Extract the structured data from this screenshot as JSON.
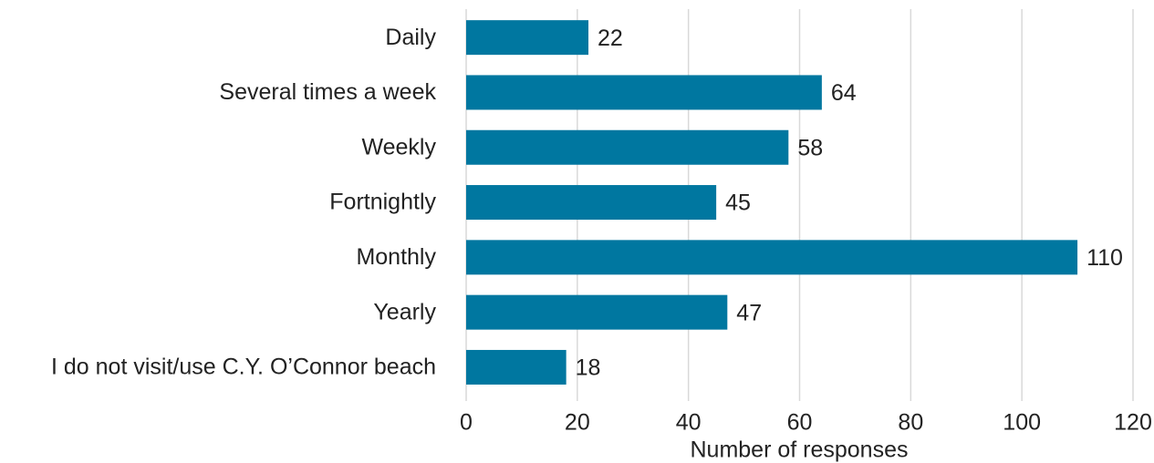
{
  "chart_data": {
    "type": "bar",
    "orientation": "horizontal",
    "categories": [
      "Daily",
      "Several times a week",
      "Weekly",
      "Fortnightly",
      "Monthly",
      "Yearly",
      "I do not visit/use C.Y. O’Connor beach"
    ],
    "values": [
      22,
      64,
      58,
      45,
      110,
      47,
      18
    ],
    "color": "#0077a0",
    "xlabel": "Number of responses",
    "xlim": [
      0,
      120
    ],
    "xticks": [
      0,
      20,
      40,
      60,
      80,
      100,
      120
    ],
    "grid": true
  }
}
